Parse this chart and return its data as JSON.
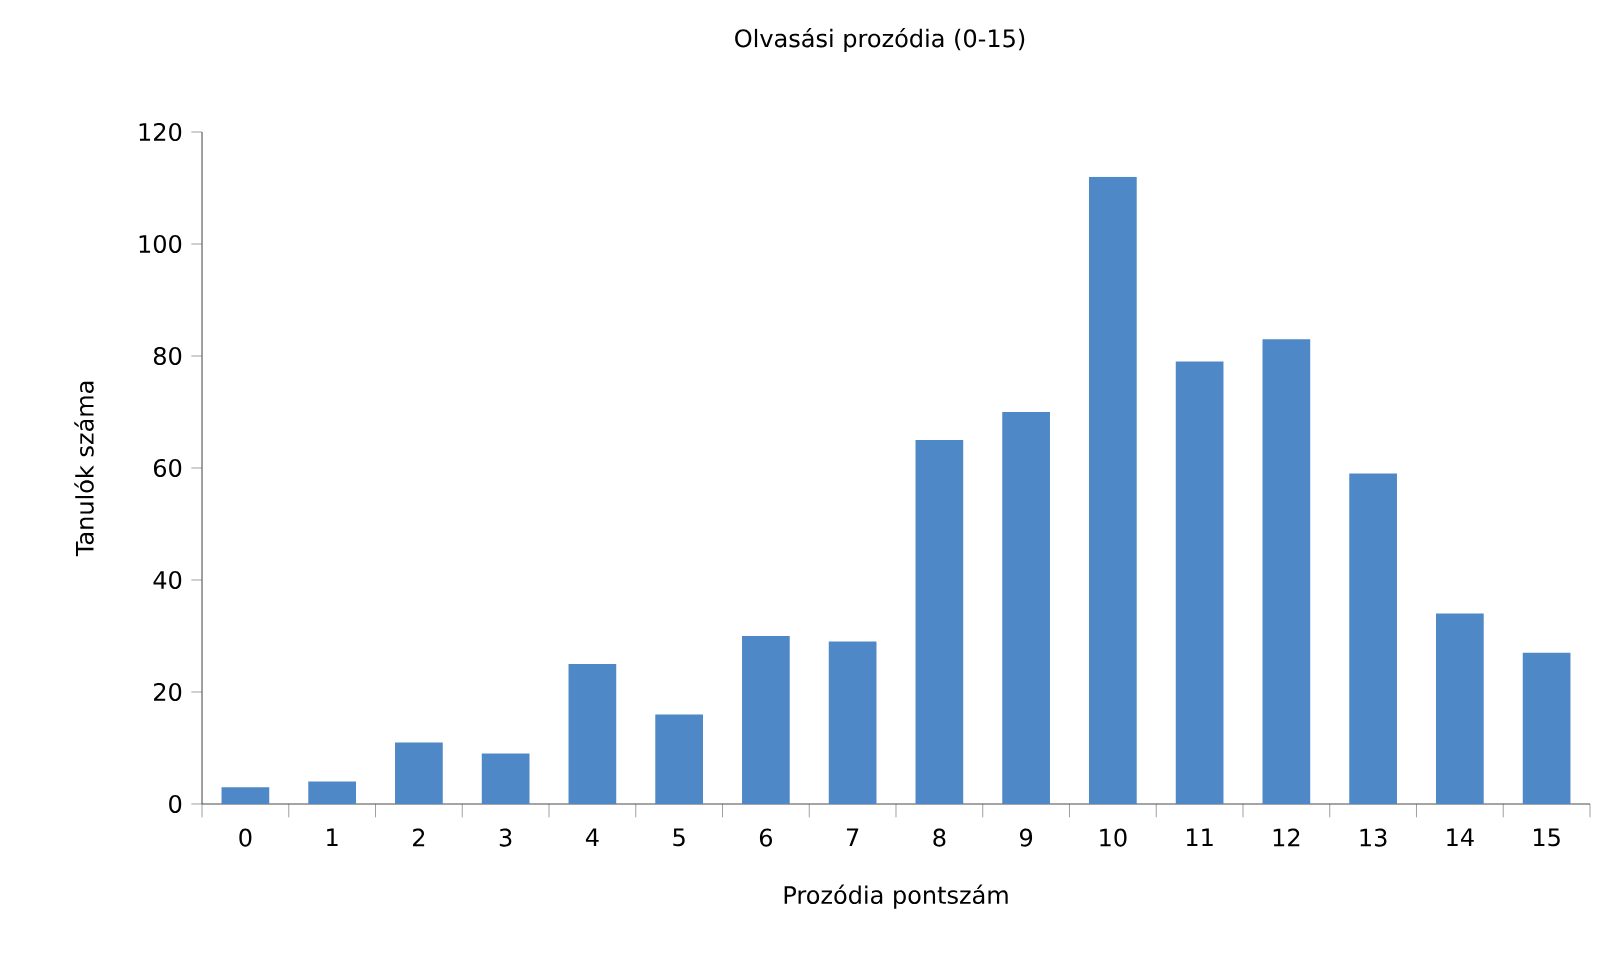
{
  "chart_data": {
    "type": "bar",
    "title": "Olvasási prozódia (0-15)",
    "xlabel": "Prozódia pontszám",
    "ylabel": "Tanulók száma",
    "categories": [
      "0",
      "1",
      "2",
      "3",
      "4",
      "5",
      "6",
      "7",
      "8",
      "9",
      "10",
      "11",
      "12",
      "13",
      "14",
      "15"
    ],
    "values": [
      3,
      4,
      11,
      9,
      25,
      16,
      30,
      29,
      65,
      70,
      112,
      79,
      83,
      59,
      34,
      27
    ],
    "color": "#4f88c6",
    "ylim": [
      0,
      120
    ],
    "yticks": [
      0,
      20,
      40,
      60,
      80,
      100,
      120
    ],
    "grid": false
  }
}
